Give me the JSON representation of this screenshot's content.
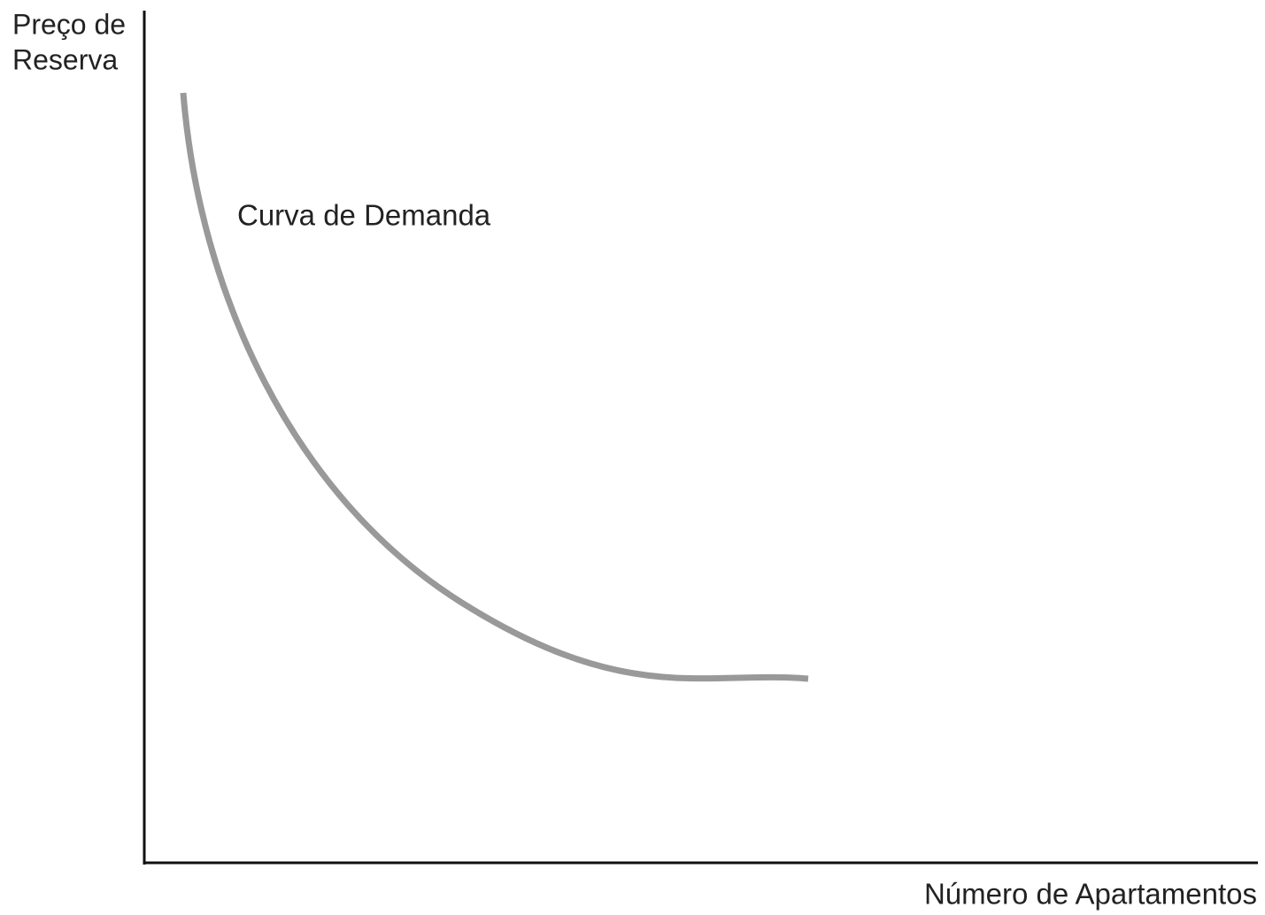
{
  "axes": {
    "y_label": [
      "Preço de",
      "Reserva"
    ],
    "x_label": "Número de Apartamentos"
  },
  "curve": {
    "label": "Curva de Demanda"
  }
}
